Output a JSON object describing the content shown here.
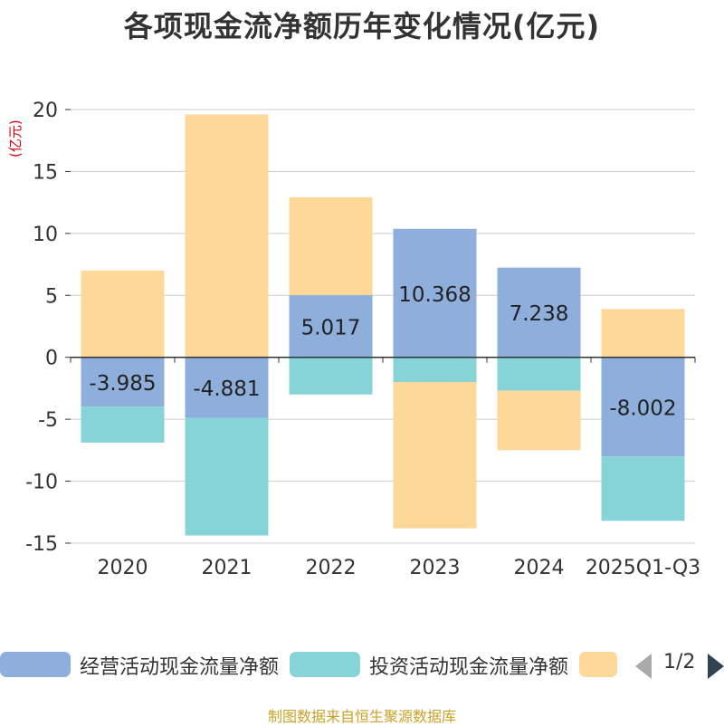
{
  "title": "各项现金流净额历年变化情况(亿元)",
  "unit_label": "(亿元)",
  "source": "制图数据来自恒生聚源数据库",
  "pager": {
    "text": "1/2"
  },
  "colors": {
    "operating": "#8eaedb",
    "investing": "#87d4d8",
    "financing": "#fed899",
    "grid": "#cccccc",
    "axis": "#333333",
    "text": "#333333"
  },
  "chart_data": {
    "type": "bar",
    "stacked": true,
    "title": "各项现金流净额历年变化情况(亿元)",
    "ylabel": "(亿元)",
    "ylim": [
      -15,
      20
    ],
    "yticks": [
      -15,
      -10,
      -5,
      0,
      5,
      10,
      15,
      20
    ],
    "categories": [
      "2020",
      "2021",
      "2022",
      "2023",
      "2024",
      "2025Q1-Q3"
    ],
    "series": [
      {
        "name": "经营活动现金流量净额",
        "color": "#8eaedb",
        "values": [
          -3.985,
          -4.881,
          5.017,
          10.368,
          7.238,
          -8.002
        ],
        "show_labels": true
      },
      {
        "name": "投资活动现金流量净额",
        "color": "#87d4d8",
        "values": [
          -2.9,
          -9.5,
          -3.0,
          -2.0,
          -2.7,
          -5.2
        ],
        "show_labels": false
      },
      {
        "name": "",
        "color": "#fed899",
        "values": [
          7.0,
          19.6,
          7.9,
          -11.8,
          -4.8,
          3.9
        ],
        "show_labels": false
      }
    ],
    "legend": {
      "position": "bottom",
      "entries": [
        "经营活动现金流量净额",
        "投资活动现金流量净额",
        ""
      ]
    }
  }
}
